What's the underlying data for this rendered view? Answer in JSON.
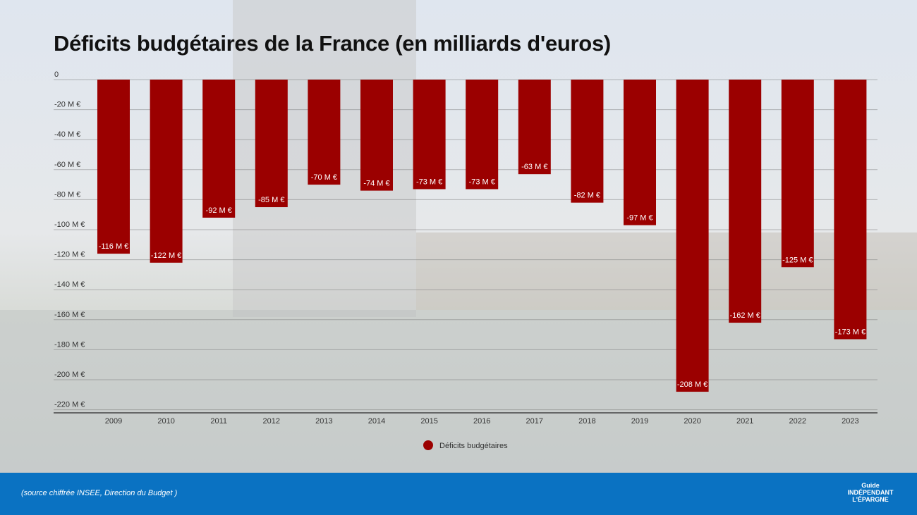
{
  "chart_data": {
    "type": "bar",
    "title": "Déficits budgétaires de la France (en milliards d'euros)",
    "categories": [
      "2009",
      "2010",
      "2011",
      "2012",
      "2013",
      "2014",
      "2015",
      "2016",
      "2017",
      "2018",
      "2019",
      "2020",
      "2021",
      "2022",
      "2023"
    ],
    "series": [
      {
        "name": "Déficits budgétaires",
        "values": [
          -116,
          -122,
          -92,
          -85,
          -70,
          -74,
          -73,
          -73,
          -63,
          -82,
          -97,
          -208,
          -162,
          -125,
          -173
        ]
      }
    ],
    "data_labels": [
      "-116 M €",
      "-122 M €",
      "-92 M €",
      "-85 M €",
      "-70 M €",
      "-74 M €",
      "-73 M €",
      "-73 M €",
      "-63 M €",
      "-82 M €",
      "-97 M €",
      "-208 M €",
      "-162 M €",
      "-125 M €",
      "-173 M €"
    ],
    "yticks": [
      0,
      -20,
      -40,
      -60,
      -80,
      -100,
      -120,
      -140,
      -160,
      -180,
      -200,
      -220
    ],
    "ytick_labels": [
      "0",
      "-20 M €",
      "-40 M €",
      "-60 M €",
      "-80 M €",
      "-100 M €",
      "-120 M €",
      "-140 M €",
      "-160 M €",
      "-180 M €",
      "-200 M €",
      "-220 M €"
    ],
    "ylim": [
      -220,
      0
    ],
    "grid": true,
    "legend_position": "bottom-center",
    "bar_color": "#9b0000"
  },
  "footer": {
    "source": "(source chiffrée INSEE, Direction du Budget )",
    "logo_text": "Guide INDÉPENDANT de L'ÉPARGNE"
  }
}
